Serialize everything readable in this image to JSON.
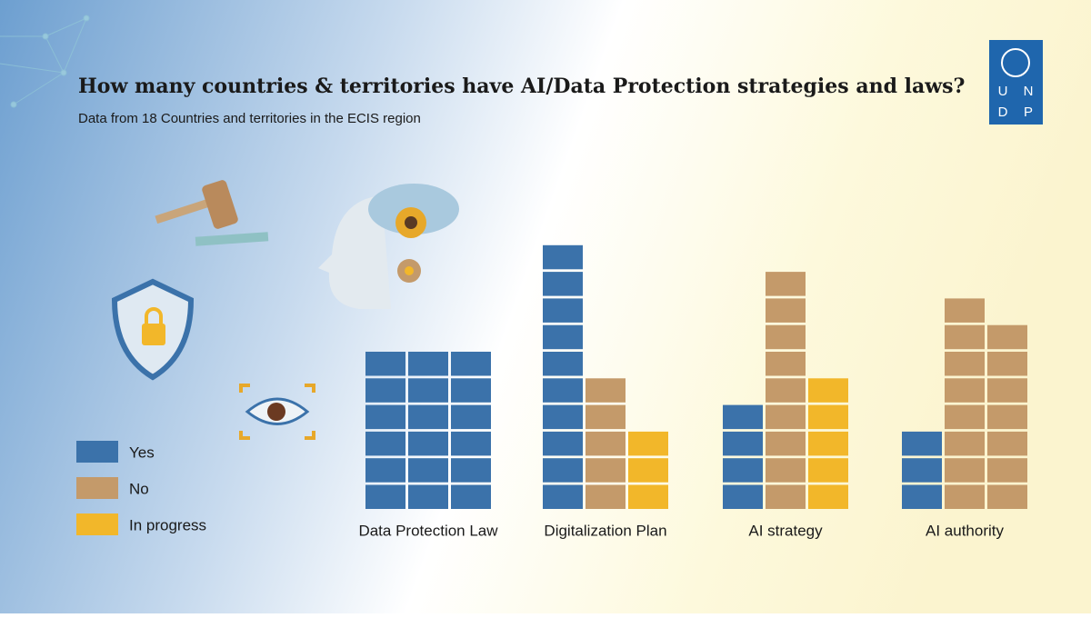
{
  "chart_data": {
    "type": "waffle",
    "title": "How many countries & territories have AI/Data Protection strategies and laws?",
    "subtitle": "Data from 18 Countries and territories in the ECIS region",
    "categories": [
      "Data Protection Law",
      "Digitalization Plan",
      "AI strategy",
      "AI authority"
    ],
    "series": [
      {
        "name": "Yes",
        "color": "#3b72aa",
        "values": [
          18,
          10,
          4,
          3
        ]
      },
      {
        "name": "No",
        "color": "#c49a6a",
        "values": [
          0,
          5,
          9,
          15
        ]
      },
      {
        "name": "In progress",
        "color": "#f2b72a",
        "values": [
          0,
          3,
          5,
          0
        ]
      }
    ]
  },
  "logo": {
    "letters": [
      "U",
      "N",
      "D",
      "P"
    ]
  }
}
